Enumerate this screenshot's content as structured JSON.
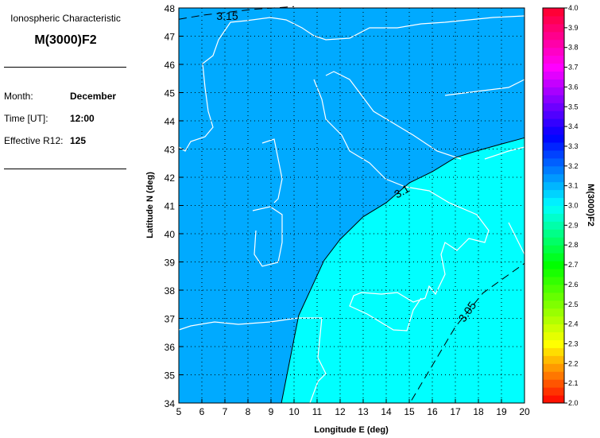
{
  "panel": {
    "subtitle": "Ionospheric Characteristic",
    "title": "M(3000)F2",
    "fields": [
      {
        "label": "Month:",
        "value": "December"
      },
      {
        "label": "Time [UT]:",
        "value": "12:00"
      },
      {
        "label": "Effective R12:",
        "value": "125"
      }
    ]
  },
  "map": {
    "xlabel": "Longitude E (deg)",
    "ylabel": "Latitude N (deg)",
    "xlim": [
      5,
      20
    ],
    "ylim": [
      34,
      48
    ],
    "xticks": [
      "5",
      "6",
      "7",
      "8",
      "9",
      "10",
      "11",
      "12",
      "13",
      "14",
      "15",
      "16",
      "17",
      "18",
      "19",
      "20"
    ],
    "yticks": [
      "34",
      "35",
      "36",
      "37",
      "38",
      "39",
      "40",
      "41",
      "42",
      "43",
      "44",
      "45",
      "46",
      "47",
      "48"
    ],
    "grid": true,
    "contours": [
      {
        "level": "3.15",
        "style": "dashed",
        "points": [
          [
            5,
            47.6
          ],
          [
            6.1,
            47.75
          ],
          [
            8.2,
            47.95
          ],
          [
            10,
            48.05
          ]
        ]
      },
      {
        "level": "3.1",
        "style": "solid",
        "points": [
          [
            9.45,
            34
          ],
          [
            10.2,
            37.1
          ],
          [
            11.3,
            39.05
          ],
          [
            12,
            39.8
          ],
          [
            13,
            40.6
          ],
          [
            14,
            41.1
          ],
          [
            15,
            41.8
          ],
          [
            16,
            42.2
          ],
          [
            17,
            42.7
          ],
          [
            18,
            42.95
          ],
          [
            19.1,
            43.2
          ],
          [
            20,
            43.4
          ]
        ]
      },
      {
        "level": "3.05",
        "style": "dashed",
        "points": [
          [
            15.1,
            34.1
          ],
          [
            17,
            36.7
          ],
          [
            18.2,
            37.9
          ],
          [
            20,
            38.95
          ]
        ]
      }
    ],
    "fill_colors": {
      "above_3.1": "#00AAFF",
      "below_3.1": "#00FFFF"
    },
    "coastline_color": "#FFFFFF"
  },
  "colorbar": {
    "label": "M(3000)F2",
    "min": 2.0,
    "max": 4.0,
    "ticks": [
      "2.0",
      "2.1",
      "2.2",
      "2.3",
      "2.4",
      "2.5",
      "2.6",
      "2.7",
      "2.8",
      "2.9",
      "3.0",
      "3.1",
      "3.2",
      "3.3",
      "3.4",
      "3.5",
      "3.6",
      "3.7",
      "3.8",
      "3.9",
      "4.0"
    ]
  }
}
